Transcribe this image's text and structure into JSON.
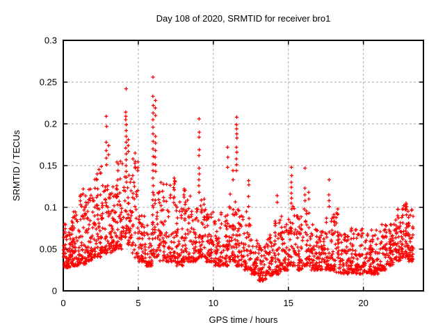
{
  "figure": {
    "background": "#ffffff",
    "border_color": "#000000",
    "grid_color": "#a8a8a8",
    "text_color": "#000000"
  },
  "chart_data": {
    "type": "scatter",
    "title": "Day 108 of 2020, SRMTID for receiver bro1",
    "xlabel": "GPS time / hours",
    "ylabel": "SRMTID / TECUs",
    "xlim": [
      0,
      24
    ],
    "ylim": [
      0,
      0.3
    ],
    "xticks": [
      0,
      5,
      10,
      15,
      20
    ],
    "xtick_labels": [
      "0",
      "5",
      "10",
      "15",
      "20"
    ],
    "yticks": [
      0,
      0.05,
      0.1,
      0.15,
      0.2,
      0.25,
      0.3
    ],
    "ytick_labels": [
      "0",
      "0.05",
      "0.1",
      "0.15",
      "0.2",
      "0.25",
      "0.3"
    ],
    "grid": {
      "visible": true,
      "style": "dashed",
      "color": "#a8a8a8"
    },
    "legend": "none",
    "marker": {
      "symbol": "plus",
      "color": "#ff0000",
      "size": 5
    },
    "series_name": "SRMTID for receiver bro1",
    "data_start_hour": 0.0,
    "data_end_hour": 23.35,
    "approx_point_count": 2400,
    "max_point": {
      "x": 5.98,
      "y": 0.256
    },
    "min_value": 0.009,
    "render_seed": 108,
    "envelope_segments": [
      [
        0.0,
        0.5,
        0.028,
        0.08,
        60
      ],
      [
        0.5,
        1.0,
        0.03,
        0.095,
        60
      ],
      [
        1.0,
        1.5,
        0.032,
        0.115,
        58
      ],
      [
        1.5,
        2.0,
        0.035,
        0.125,
        58
      ],
      [
        2.0,
        2.5,
        0.04,
        0.148,
        52
      ],
      [
        2.5,
        3.0,
        0.045,
        0.135,
        52
      ],
      [
        3.0,
        3.5,
        0.045,
        0.125,
        52
      ],
      [
        3.5,
        4.0,
        0.05,
        0.158,
        50
      ],
      [
        4.0,
        4.5,
        0.055,
        0.14,
        46
      ],
      [
        4.5,
        5.0,
        0.04,
        0.168,
        46
      ],
      [
        5.0,
        5.5,
        0.035,
        0.092,
        46
      ],
      [
        5.5,
        5.9,
        0.03,
        0.08,
        38
      ],
      [
        5.9,
        6.3,
        0.04,
        0.12,
        30
      ],
      [
        6.3,
        7.0,
        0.035,
        0.13,
        60
      ],
      [
        7.0,
        7.5,
        0.035,
        0.132,
        46
      ],
      [
        7.5,
        8.0,
        0.03,
        0.108,
        46
      ],
      [
        8.0,
        8.5,
        0.035,
        0.122,
        46
      ],
      [
        8.5,
        9.0,
        0.035,
        0.1,
        46
      ],
      [
        9.0,
        9.5,
        0.04,
        0.112,
        46
      ],
      [
        9.5,
        10.0,
        0.035,
        0.098,
        46
      ],
      [
        10.0,
        10.5,
        0.03,
        0.085,
        46
      ],
      [
        10.5,
        11.0,
        0.03,
        0.096,
        46
      ],
      [
        11.0,
        11.5,
        0.035,
        0.118,
        46
      ],
      [
        11.5,
        12.0,
        0.03,
        0.1,
        46
      ],
      [
        12.0,
        12.5,
        0.025,
        0.098,
        46
      ],
      [
        12.5,
        13.0,
        0.02,
        0.062,
        46
      ],
      [
        13.0,
        13.5,
        0.012,
        0.055,
        46
      ],
      [
        13.5,
        14.0,
        0.018,
        0.068,
        46
      ],
      [
        14.0,
        14.5,
        0.02,
        0.085,
        46
      ],
      [
        14.5,
        15.0,
        0.025,
        0.09,
        46
      ],
      [
        15.0,
        15.5,
        0.03,
        0.102,
        42
      ],
      [
        15.5,
        16.0,
        0.025,
        0.09,
        46
      ],
      [
        16.0,
        16.5,
        0.03,
        0.1,
        42
      ],
      [
        16.5,
        17.0,
        0.025,
        0.08,
        46
      ],
      [
        17.0,
        17.5,
        0.025,
        0.075,
        46
      ],
      [
        17.5,
        18.0,
        0.025,
        0.092,
        46
      ],
      [
        18.0,
        18.5,
        0.022,
        0.095,
        46
      ],
      [
        18.5,
        19.0,
        0.02,
        0.075,
        46
      ],
      [
        19.0,
        19.5,
        0.022,
        0.08,
        46
      ],
      [
        19.5,
        20.0,
        0.02,
        0.075,
        46
      ],
      [
        20.0,
        20.5,
        0.022,
        0.07,
        46
      ],
      [
        20.5,
        21.0,
        0.02,
        0.075,
        46
      ],
      [
        21.0,
        21.5,
        0.025,
        0.08,
        46
      ],
      [
        21.5,
        22.0,
        0.03,
        0.088,
        46
      ],
      [
        22.0,
        22.5,
        0.035,
        0.098,
        50
      ],
      [
        22.5,
        23.0,
        0.04,
        0.105,
        56
      ],
      [
        23.0,
        23.35,
        0.035,
        0.098,
        40
      ]
    ],
    "spike_columns": [
      {
        "x": 1.32,
        "ys": [
          0.122,
          0.116
        ]
      },
      {
        "x": 2.24,
        "ys": [
          0.14,
          0.133
        ]
      },
      {
        "x": 2.52,
        "ys": [
          0.149,
          0.141
        ]
      },
      {
        "x": 2.88,
        "ys": [
          0.209,
          0.197,
          0.178,
          0.168,
          0.159,
          0.151
        ]
      },
      {
        "x": 3.03,
        "ys": [
          0.174,
          0.163
        ]
      },
      {
        "x": 3.65,
        "ys": [
          0.152,
          0.144
        ]
      },
      {
        "x": 4.18,
        "ys": [
          0.242,
          0.214,
          0.209,
          0.205,
          0.199,
          0.192,
          0.185,
          0.178,
          0.171,
          0.164,
          0.157,
          0.15,
          0.143,
          0.136
        ]
      },
      {
        "x": 4.33,
        "ys": [
          0.181,
          0.174,
          0.167
        ]
      },
      {
        "x": 4.8,
        "ys": [
          0.165,
          0.155,
          0.147
        ]
      },
      {
        "x": 5.98,
        "ys": [
          0.256,
          0.233,
          0.222,
          0.213,
          0.205,
          0.196,
          0.188,
          0.179,
          0.17,
          0.161,
          0.152,
          0.144,
          0.135,
          0.126,
          0.118,
          0.109,
          0.1,
          0.091,
          0.082
        ]
      },
      {
        "x": 6.14,
        "ys": [
          0.228,
          0.219,
          0.21,
          0.185,
          0.177,
          0.168,
          0.16,
          0.151,
          0.143
        ]
      },
      {
        "x": 7.38,
        "ys": [
          0.135,
          0.128,
          0.121
        ]
      },
      {
        "x": 8.05,
        "ys": [
          0.122,
          0.115
        ]
      },
      {
        "x": 9.05,
        "ys": [
          0.206,
          0.19,
          0.184,
          0.169,
          0.162,
          0.147,
          0.14,
          0.133,
          0.126,
          0.118
        ]
      },
      {
        "x": 10.95,
        "ys": [
          0.172,
          0.16,
          0.148
        ]
      },
      {
        "x": 11.3,
        "ys": [
          0.144,
          0.133
        ]
      },
      {
        "x": 11.55,
        "ys": [
          0.208,
          0.199,
          0.194,
          0.188,
          0.183,
          0.172,
          0.166,
          0.158,
          0.151,
          0.144
        ]
      },
      {
        "x": 12.35,
        "ys": [
          0.132,
          0.127,
          0.113,
          0.101
        ]
      },
      {
        "x": 14.25,
        "ys": [
          0.114,
          0.106
        ]
      },
      {
        "x": 15.2,
        "ys": [
          0.148,
          0.138,
          0.13,
          0.124,
          0.117,
          0.111,
          0.105,
          0.098
        ]
      },
      {
        "x": 16.1,
        "ys": [
          0.147,
          0.123,
          0.115,
          0.108
        ]
      },
      {
        "x": 16.35,
        "ys": [
          0.118,
          0.11
        ]
      },
      {
        "x": 17.7,
        "ys": [
          0.133,
          0.115,
          0.108,
          0.101
        ]
      },
      {
        "x": 18.3,
        "ys": [
          0.098,
          0.092
        ]
      },
      {
        "x": 22.85,
        "ys": [
          0.105,
          0.098,
          0.091
        ]
      }
    ]
  }
}
